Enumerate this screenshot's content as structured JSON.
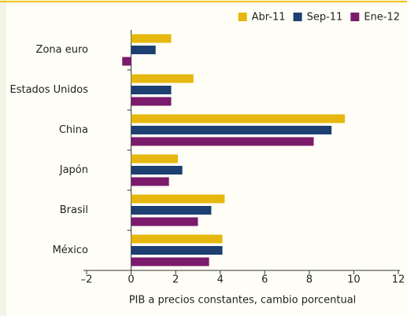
{
  "chart_data": {
    "type": "hbar",
    "categories": [
      "Zona euro",
      "Estados Unidos",
      "China",
      "Japón",
      "Brasil",
      "México"
    ],
    "series": [
      {
        "name": "Abr-11",
        "color": "#e6b80f",
        "values": [
          1.8,
          2.8,
          9.6,
          2.1,
          4.2,
          4.1
        ]
      },
      {
        "name": "Sep-11",
        "color": "#1d3f72",
        "values": [
          1.1,
          1.8,
          9.0,
          2.3,
          3.6,
          4.1
        ]
      },
      {
        "name": "Ene-12",
        "color": "#7a1b6c",
        "values": [
          -0.4,
          1.8,
          8.2,
          1.7,
          3.0,
          3.5
        ]
      }
    ],
    "xlabel": "PIB a precios constantes, cambio porcentual",
    "xlim": [
      -2,
      12
    ],
    "xticks": [
      {
        "value": -2,
        "label": "–2"
      },
      0,
      2,
      4,
      6,
      8,
      10,
      12
    ],
    "legend": "top-right"
  }
}
